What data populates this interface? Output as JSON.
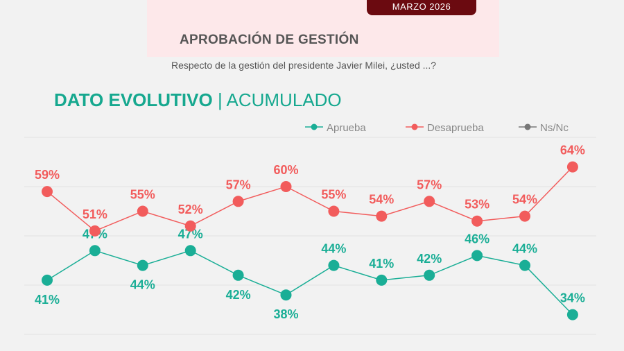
{
  "header": {
    "date_badge": "MARZO 2026",
    "title": "APROBACIÓN DE GESTIÓN",
    "question": "Respecto de la gestión del presidente Javier Milei, ¿usted ...?"
  },
  "chart_title": {
    "bold": "DATO EVOLUTIVO",
    "separator": " | ",
    "light": "ACUMULADO"
  },
  "chart_data": {
    "type": "line",
    "ylim": [
      30,
      70
    ],
    "grid": true,
    "legend_position": "top-right",
    "series": [
      {
        "name": "Aprueba",
        "color": "#1aae96",
        "values": [
          41,
          47,
          44,
          47,
          42,
          38,
          44,
          41,
          42,
          46,
          44,
          34
        ]
      },
      {
        "name": "Desaprueba",
        "color": "#f25c5c",
        "values": [
          59,
          51,
          55,
          52,
          57,
          60,
          55,
          54,
          57,
          53,
          54,
          64
        ]
      },
      {
        "name": "Ns/Nc",
        "color": "#777777",
        "values": []
      }
    ]
  }
}
